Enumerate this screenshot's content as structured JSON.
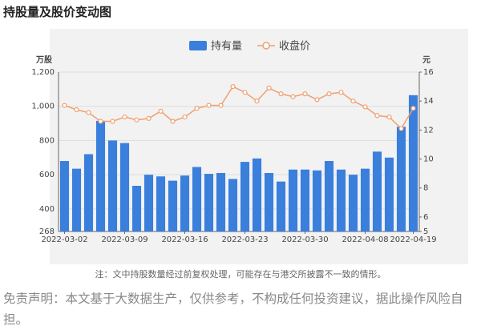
{
  "title": "持股量及股价变动图",
  "chart_data": {
    "type": "bar-line",
    "y_label": "万股",
    "y2_label": "元",
    "categories": [
      "2022-03-02",
      null,
      null,
      null,
      null,
      "2022-03-09",
      null,
      null,
      null,
      null,
      "2022-03-16",
      null,
      null,
      null,
      null,
      "2022-03-23",
      null,
      null,
      null,
      null,
      "2022-03-30",
      null,
      null,
      null,
      null,
      "2022-04-08",
      null,
      null,
      null,
      "2022-04-19"
    ],
    "series": [
      {
        "name": "持有量",
        "color": "#3a7fdc",
        "values": [
          680,
          635,
          720,
          915,
          800,
          785,
          535,
          600,
          590,
          565,
          595,
          645,
          605,
          610,
          575,
          675,
          695,
          610,
          560,
          630,
          630,
          625,
          680,
          630,
          600,
          635,
          735,
          700,
          880,
          1065
        ]
      },
      {
        "name": "收盘价",
        "color": "#f0a070",
        "axis": "y2",
        "values": [
          13.7,
          13.4,
          13.2,
          12.6,
          12.6,
          12.9,
          12.7,
          12.8,
          13.3,
          12.6,
          12.9,
          13.5,
          13.7,
          13.7,
          15.0,
          14.6,
          14.0,
          14.9,
          14.5,
          14.3,
          14.5,
          14.1,
          14.5,
          14.6,
          14.0,
          13.6,
          13.0,
          12.9,
          12.1,
          13.5
        ]
      }
    ],
    "ylim": [
      268,
      1200
    ],
    "yticks": [
      268,
      400,
      600,
      800,
      {
        "value": 1000,
        "label": "1,000"
      },
      {
        "value": 1200,
        "label": "1,200"
      }
    ],
    "y2lim": [
      5,
      16
    ],
    "y2ticks": [
      5,
      6,
      8,
      10,
      12,
      14,
      16
    ],
    "grid": true,
    "legend": "top"
  },
  "note": "注：文中持股数量经过前复权处理，可能存在与港交所披露不一致的情形。",
  "disclaimer": "免责声明：本文基于大数据生产，仅供参考，不构成任何投资建议，据此操作风险自担。"
}
